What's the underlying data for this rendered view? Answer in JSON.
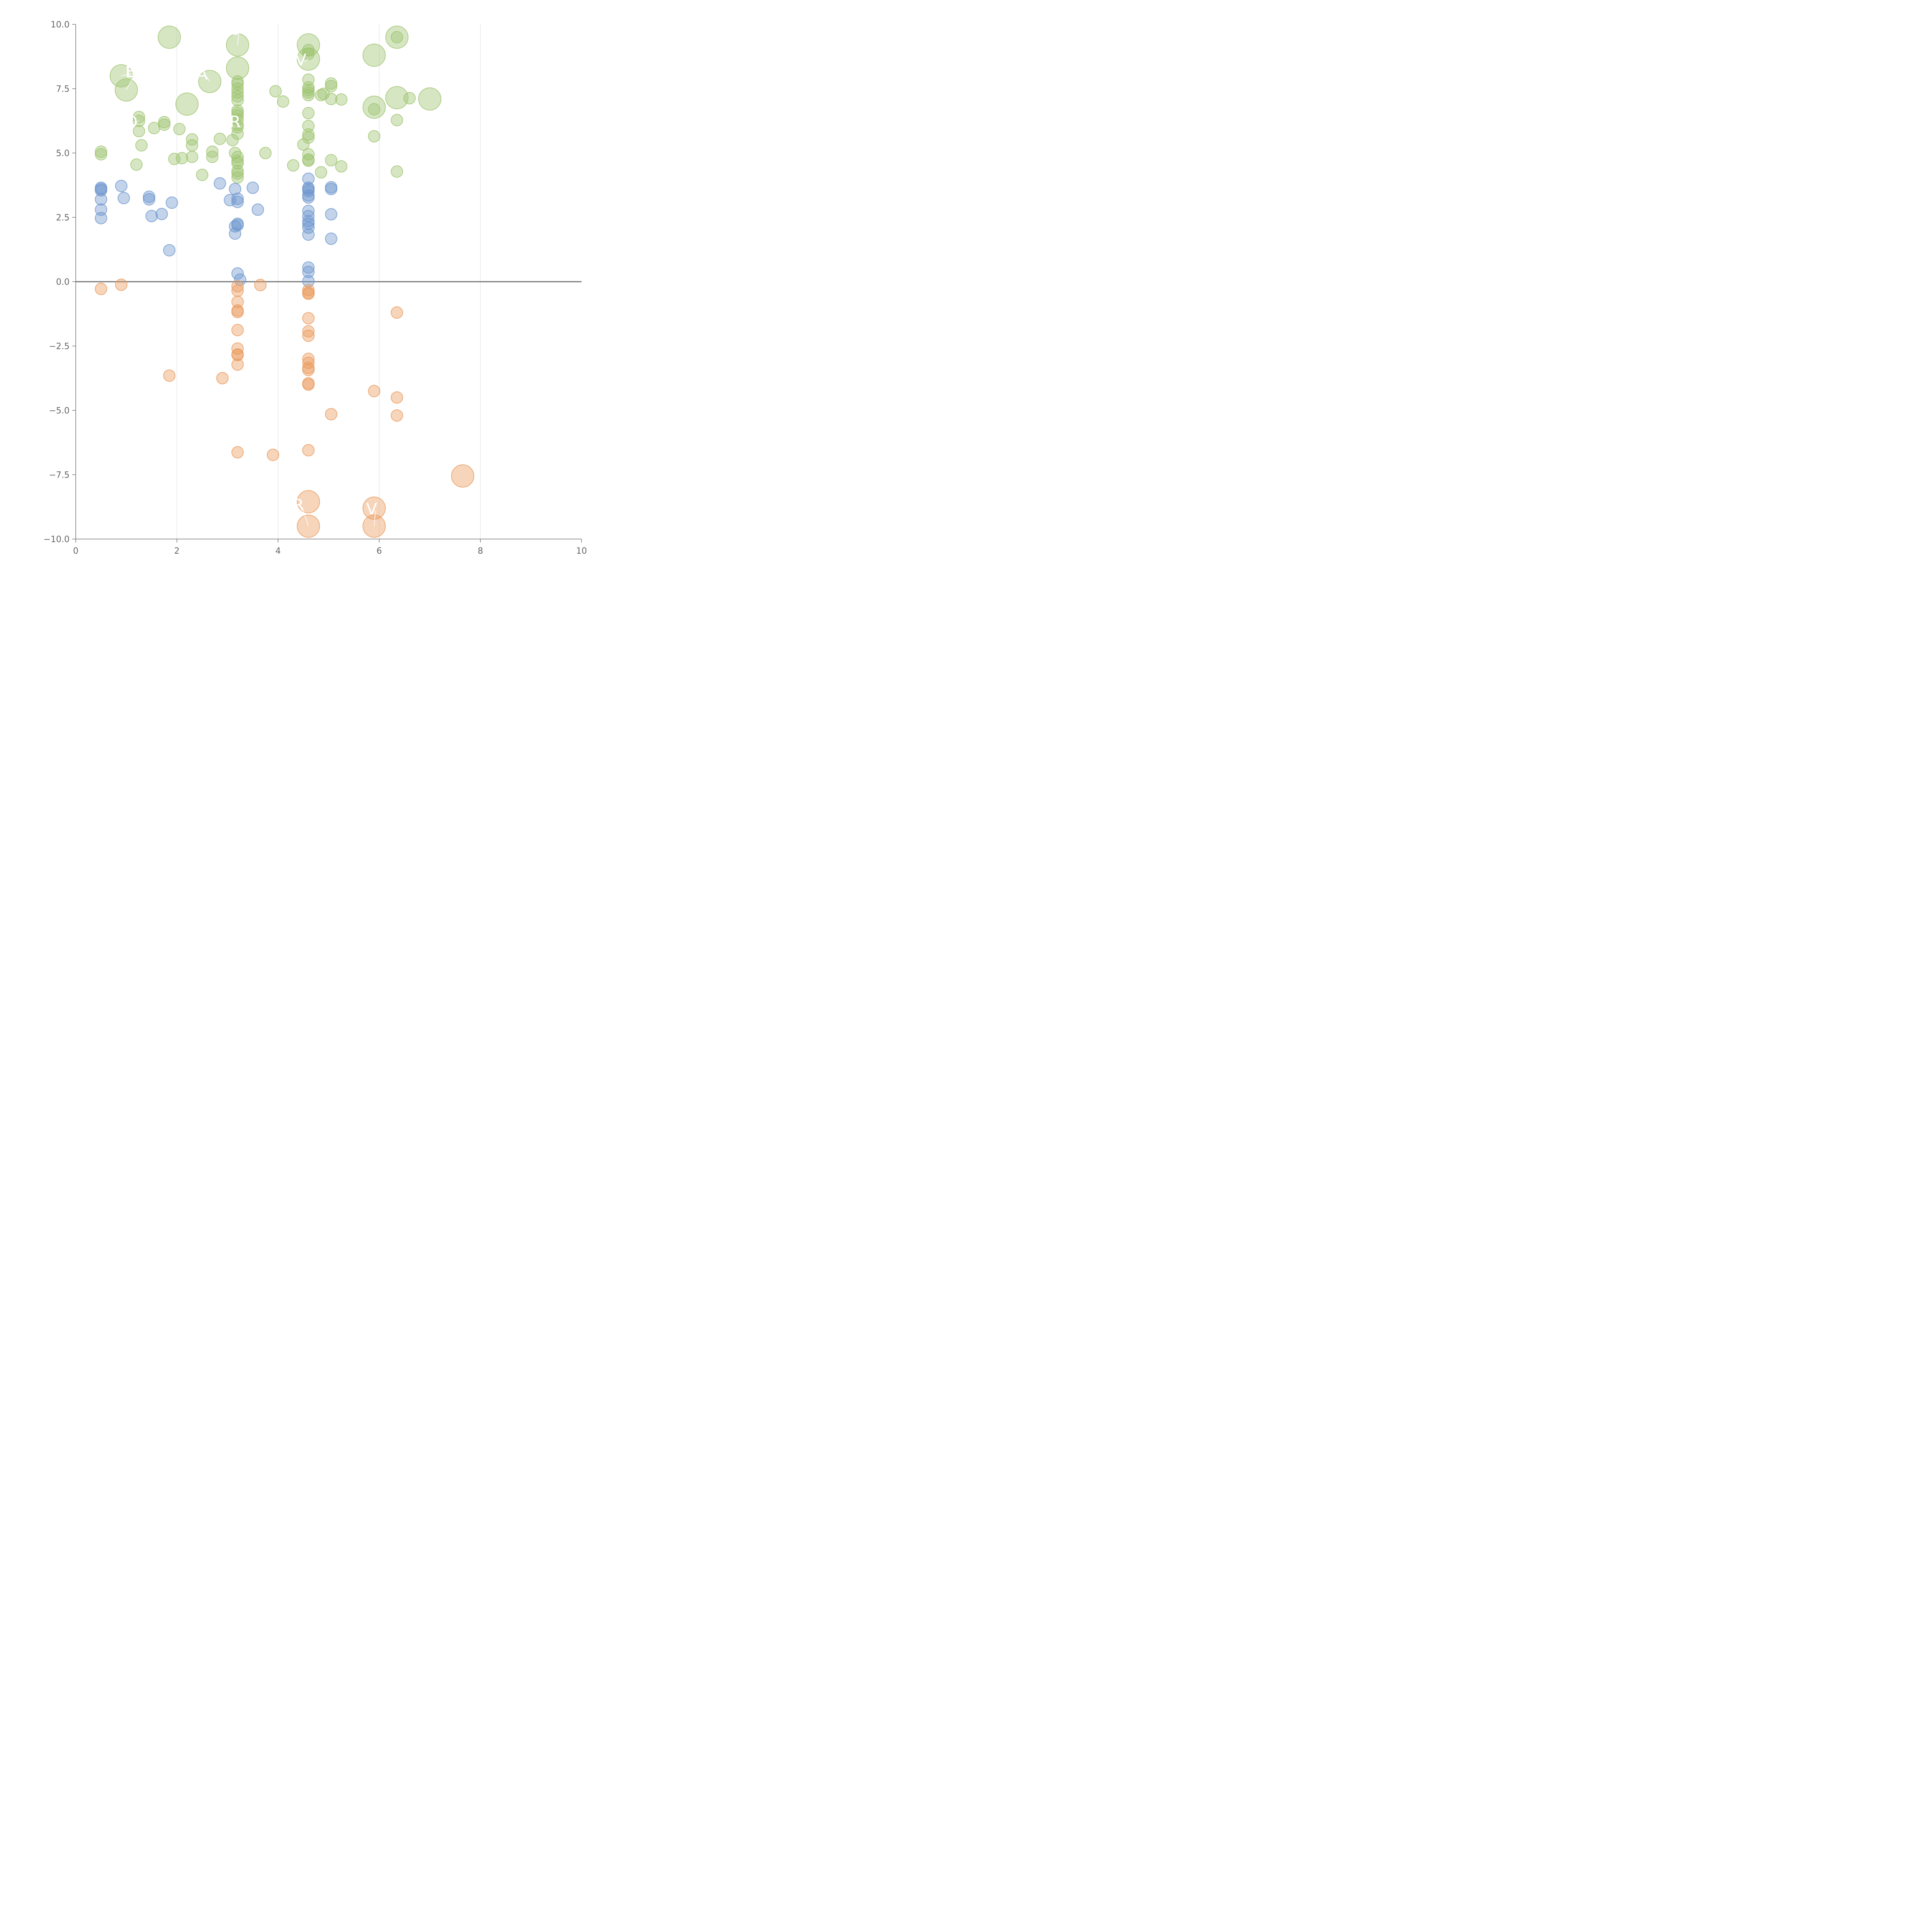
{
  "chart_data": {
    "type": "scatter",
    "title": "",
    "xlabel": "",
    "ylabel": "",
    "xlim": [
      0,
      10
    ],
    "ylim": [
      -10,
      10
    ],
    "xticks": [
      "0",
      "2",
      "4",
      "6",
      "8",
      "10"
    ],
    "yticks": [
      "−10.0",
      "−7.5",
      "−5.0",
      "−2.5",
      "0.0",
      "2.5",
      "5.0",
      "7.5",
      "10.0"
    ],
    "vertical_gridlines": [
      2,
      4,
      6,
      8
    ],
    "zero_line": 0,
    "colors": {
      "green": "#9dc46f",
      "blue": "#6e95cd",
      "orange": "#ea9a5c"
    },
    "series": [
      {
        "color": "green",
        "points": [
          [
            0.5,
            5.05
          ],
          [
            0.5,
            4.95
          ],
          [
            1.2,
            4.55
          ],
          [
            1.25,
            6.4
          ],
          [
            1.25,
            6.25
          ],
          [
            1.25,
            5.85
          ],
          [
            1.3,
            5.3
          ],
          [
            1.55,
            5.97
          ],
          [
            1.75,
            6.2
          ],
          [
            1.75,
            6.1
          ],
          [
            1.95,
            4.77
          ],
          [
            2.05,
            5.93
          ],
          [
            2.1,
            4.8
          ],
          [
            2.3,
            5.53
          ],
          [
            2.3,
            5.3
          ],
          [
            2.3,
            4.85
          ],
          [
            2.5,
            4.15
          ],
          [
            2.7,
            5.05
          ],
          [
            2.7,
            4.85
          ],
          [
            2.85,
            5.55
          ],
          [
            3.1,
            5.5
          ],
          [
            3.15,
            5.0
          ],
          [
            3.2,
            7.78
          ],
          [
            3.2,
            7.68
          ],
          [
            3.2,
            7.5
          ],
          [
            3.2,
            7.35
          ],
          [
            3.2,
            7.2
          ],
          [
            3.2,
            7.05
          ],
          [
            3.2,
            6.65
          ],
          [
            3.2,
            6.55
          ],
          [
            3.2,
            6.45
          ],
          [
            3.2,
            6.3
          ],
          [
            3.2,
            6.1
          ],
          [
            3.2,
            6.0
          ],
          [
            3.2,
            5.75
          ],
          [
            3.2,
            4.85
          ],
          [
            3.2,
            4.7
          ],
          [
            3.2,
            4.6
          ],
          [
            3.2,
            4.3
          ],
          [
            3.2,
            4.2
          ],
          [
            3.2,
            4.05
          ],
          [
            3.75,
            5.0
          ],
          [
            3.95,
            7.4
          ],
          [
            4.1,
            7.0
          ],
          [
            4.3,
            4.52
          ],
          [
            4.5,
            5.33
          ],
          [
            4.6,
            7.85
          ],
          [
            4.6,
            7.55
          ],
          [
            4.6,
            7.45
          ],
          [
            4.6,
            7.35
          ],
          [
            4.6,
            7.25
          ],
          [
            4.6,
            6.55
          ],
          [
            4.6,
            6.05
          ],
          [
            4.6,
            5.72
          ],
          [
            4.6,
            5.6
          ],
          [
            4.6,
            4.95
          ],
          [
            4.6,
            4.75
          ],
          [
            4.6,
            4.7
          ],
          [
            4.6,
            9.0
          ],
          [
            4.6,
            8.85
          ],
          [
            4.85,
            7.25
          ],
          [
            4.9,
            7.3
          ],
          [
            4.85,
            4.25
          ],
          [
            5.05,
            7.7
          ],
          [
            5.05,
            7.6
          ],
          [
            5.05,
            7.1
          ],
          [
            5.05,
            4.72
          ],
          [
            5.25,
            7.08
          ],
          [
            5.25,
            4.48
          ],
          [
            5.9,
            6.7
          ],
          [
            5.9,
            5.65
          ],
          [
            6.35,
            6.28
          ],
          [
            6.35,
            4.28
          ],
          [
            6.35,
            9.5
          ],
          [
            6.6,
            7.13
          ]
        ]
      },
      {
        "color": "blue",
        "points": [
          [
            0.5,
            3.65
          ],
          [
            0.5,
            3.6
          ],
          [
            0.5,
            3.55
          ],
          [
            0.5,
            3.2
          ],
          [
            0.5,
            2.8
          ],
          [
            0.5,
            2.47
          ],
          [
            0.9,
            3.72
          ],
          [
            0.95,
            3.25
          ],
          [
            1.45,
            3.3
          ],
          [
            1.45,
            3.2
          ],
          [
            1.5,
            2.55
          ],
          [
            1.7,
            2.63
          ],
          [
            1.9,
            3.07
          ],
          [
            1.85,
            1.22
          ],
          [
            2.85,
            3.82
          ],
          [
            3.05,
            3.17
          ],
          [
            3.15,
            3.6
          ],
          [
            3.2,
            3.22
          ],
          [
            3.2,
            3.1
          ],
          [
            3.2,
            2.25
          ],
          [
            3.2,
            2.2
          ],
          [
            3.15,
            2.15
          ],
          [
            3.15,
            1.87
          ],
          [
            3.2,
            0.32
          ],
          [
            3.25,
            0.08
          ],
          [
            3.5,
            3.65
          ],
          [
            3.6,
            2.8
          ],
          [
            4.6,
            4.0
          ],
          [
            4.6,
            3.65
          ],
          [
            4.6,
            3.6
          ],
          [
            4.6,
            3.52
          ],
          [
            4.6,
            3.35
          ],
          [
            4.6,
            3.27
          ],
          [
            4.6,
            2.75
          ],
          [
            4.6,
            2.55
          ],
          [
            4.6,
            2.35
          ],
          [
            4.6,
            2.25
          ],
          [
            4.6,
            2.1
          ],
          [
            4.6,
            1.83
          ],
          [
            4.6,
            0.55
          ],
          [
            4.6,
            0.38
          ],
          [
            4.6,
            0.02
          ],
          [
            5.05,
            3.67
          ],
          [
            5.05,
            3.6
          ],
          [
            5.05,
            2.62
          ],
          [
            5.05,
            1.67
          ]
        ]
      },
      {
        "color": "orange",
        "points": [
          [
            0.5,
            -0.28
          ],
          [
            0.9,
            -0.12
          ],
          [
            1.85,
            -3.65
          ],
          [
            2.9,
            -3.75
          ],
          [
            3.2,
            -0.18
          ],
          [
            3.2,
            -0.35
          ],
          [
            3.2,
            -0.78
          ],
          [
            3.2,
            -1.12
          ],
          [
            3.2,
            -1.18
          ],
          [
            3.2,
            -1.88
          ],
          [
            3.2,
            -2.6
          ],
          [
            3.2,
            -2.85
          ],
          [
            3.2,
            -2.83
          ],
          [
            3.2,
            -3.22
          ],
          [
            3.2,
            -6.63
          ],
          [
            3.65,
            -0.13
          ],
          [
            3.9,
            -6.73
          ],
          [
            4.6,
            -0.33
          ],
          [
            4.6,
            -0.43
          ],
          [
            4.6,
            -0.47
          ],
          [
            4.6,
            -1.42
          ],
          [
            4.6,
            -1.93
          ],
          [
            4.6,
            -2.1
          ],
          [
            4.6,
            -3.0
          ],
          [
            4.6,
            -3.15
          ],
          [
            4.6,
            -3.35
          ],
          [
            4.6,
            -3.43
          ],
          [
            4.6,
            -3.95
          ],
          [
            4.6,
            -4.0
          ],
          [
            4.6,
            -6.55
          ],
          [
            5.05,
            -5.15
          ],
          [
            5.9,
            -4.25
          ],
          [
            6.35,
            -1.2
          ],
          [
            6.35,
            -4.5
          ],
          [
            6.35,
            -5.2
          ]
        ]
      }
    ],
    "bubbles": [
      {
        "color": "green",
        "x": 1.85,
        "y": 9.5
      },
      {
        "color": "green",
        "x": 0.9,
        "y": 8.0
      },
      {
        "color": "green",
        "x": 1.0,
        "y": 7.45
      },
      {
        "color": "green",
        "x": 2.2,
        "y": 6.9
      },
      {
        "color": "green",
        "x": 2.65,
        "y": 7.78
      },
      {
        "color": "green",
        "x": 3.2,
        "y": 9.2
      },
      {
        "color": "green",
        "x": 3.2,
        "y": 8.3
      },
      {
        "color": "green",
        "x": 4.6,
        "y": 9.2
      },
      {
        "color": "green",
        "x": 4.6,
        "y": 8.65
      },
      {
        "color": "green",
        "x": 5.9,
        "y": 8.8
      },
      {
        "color": "green",
        "x": 5.9,
        "y": 6.78
      },
      {
        "color": "green",
        "x": 6.35,
        "y": 9.5
      },
      {
        "color": "green",
        "x": 6.35,
        "y": 7.15
      },
      {
        "color": "green",
        "x": 7.0,
        "y": 7.1
      },
      {
        "color": "orange",
        "x": 7.65,
        "y": -7.55
      },
      {
        "color": "orange",
        "x": 4.6,
        "y": -8.55
      },
      {
        "color": "orange",
        "x": 4.6,
        "y": -9.5
      },
      {
        "color": "orange",
        "x": 5.9,
        "y": -8.8
      },
      {
        "color": "orange",
        "x": 5.9,
        "y": -9.5
      }
    ],
    "labels": [
      {
        "text": "D",
        "x": 1.1,
        "y": 7.95,
        "leader_to": [
          0.9,
          8.0
        ]
      },
      {
        "text": "B",
        "x": 1.1,
        "y": 7.95,
        "leader_to": [
          1.0,
          7.45
        ]
      },
      {
        "text": "A",
        "x": 2.5,
        "y": 7.85,
        "leader_to": [
          2.65,
          7.78
        ]
      },
      {
        "text": "O",
        "x": 3.15,
        "y": 9.6,
        "leader_to": [
          3.2,
          9.2
        ]
      },
      {
        "text": "R",
        "x": 3.15,
        "y": 6.0,
        "leader_to": [
          3.2,
          6.0
        ]
      },
      {
        "text": "V",
        "x": 4.45,
        "y": 8.4,
        "leader_to": [
          4.6,
          8.65
        ]
      },
      {
        "text": "R",
        "x": 4.4,
        "y": -8.9,
        "leader_to": [
          4.6,
          -9.5
        ]
      },
      {
        "text": "V",
        "x": 5.85,
        "y": -9.05,
        "leader_to": [
          5.9,
          -9.5
        ]
      },
      {
        "text": "D",
        "x": 1.1,
        "y": 6.0,
        "leader_to": [
          1.25,
          6.25
        ]
      }
    ]
  }
}
